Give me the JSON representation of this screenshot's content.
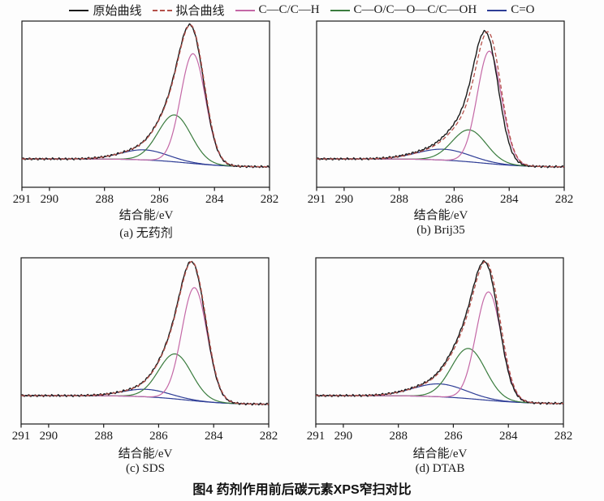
{
  "caption": "图4 药剂作用前后碳元素XPS窄扫对比",
  "colors": {
    "frame": "#1a1a1a",
    "raw": "#1a1a1a",
    "fit": "#b5504a",
    "cc": "#c468a6",
    "co": "#3a7c3e",
    "cO": "#2e3d96",
    "bg_line": "#2e3d96"
  },
  "legend": {
    "items": [
      {
        "key": "raw",
        "label": "原始曲线",
        "color": "#1a1a1a",
        "dash": false
      },
      {
        "key": "fit",
        "label": "拟合曲线",
        "color": "#b5504a",
        "dash": true
      },
      {
        "key": "cc",
        "label": "C—C/C—H",
        "color": "#c468a6",
        "dash": false
      },
      {
        "key": "co",
        "label": "C—O/C—O—C/C—OH",
        "color": "#3a7c3e",
        "dash": false
      },
      {
        "key": "cO",
        "label": "C=O",
        "color": "#2e3d96",
        "dash": false
      }
    ]
  },
  "axis": {
    "xlabel": "结合能/eV",
    "x_range": [
      291,
      282
    ],
    "x_ticks": [
      291,
      290,
      288,
      286,
      284,
      282
    ]
  },
  "chart_data": [
    {
      "id": "a",
      "type": "line",
      "label": "(a) 无药剂",
      "xlabel": "结合能/eV",
      "x_range": [
        291,
        282
      ],
      "x_ticks": [
        291,
        290,
        288,
        286,
        284,
        282
      ],
      "apex": 0.99,
      "raw_shift": 0.02,
      "background": {
        "step": 0.06,
        "center": 285.0,
        "width": 0.8
      },
      "peaks": [
        {
          "name": "C—C/C—H",
          "color_key": "cc",
          "center": 284.78,
          "amp": 0.82,
          "sigma": 0.45
        },
        {
          "name": "C—O/C—O—C/C—OH",
          "color_key": "co",
          "center": 285.45,
          "amp": 0.35,
          "sigma": 0.6
        },
        {
          "name": "C=O",
          "color_key": "cO",
          "center": 286.55,
          "amp": 0.075,
          "sigma": 0.85
        }
      ]
    },
    {
      "id": "b",
      "type": "line",
      "label": "(b) Brij35",
      "xlabel": "结合能/eV",
      "x_range": [
        291,
        282
      ],
      "x_ticks": [
        291,
        290,
        288,
        286,
        284,
        282
      ],
      "apex": 0.94,
      "raw_shift": 0.1,
      "background": {
        "step": 0.06,
        "center": 285.0,
        "width": 0.8
      },
      "peaks": [
        {
          "name": "C—C/C—H",
          "color_key": "cc",
          "center": 284.72,
          "amp": 0.88,
          "sigma": 0.44
        },
        {
          "name": "C—O/C—O—C/C—OH",
          "color_key": "co",
          "center": 285.45,
          "amp": 0.25,
          "sigma": 0.62
        },
        {
          "name": "C=O",
          "color_key": "cO",
          "center": 286.38,
          "amp": 0.085,
          "sigma": 0.95
        }
      ]
    },
    {
      "id": "c",
      "type": "line",
      "label": "(c) SDS",
      "xlabel": "结合能/eV",
      "x_range": [
        291,
        282
      ],
      "x_ticks": [
        291,
        290,
        288,
        286,
        284,
        282
      ],
      "apex": 0.99,
      "raw_shift": 0.02,
      "background": {
        "step": 0.065,
        "center": 285.0,
        "width": 0.8
      },
      "peaks": [
        {
          "name": "C—C/C—H",
          "color_key": "cc",
          "center": 284.7,
          "amp": 0.83,
          "sigma": 0.46
        },
        {
          "name": "C—O/C—O—C/C—OH",
          "color_key": "co",
          "center": 285.4,
          "amp": 0.33,
          "sigma": 0.6
        },
        {
          "name": "C=O",
          "color_key": "cO",
          "center": 286.45,
          "amp": 0.055,
          "sigma": 0.85
        }
      ]
    },
    {
      "id": "d",
      "type": "line",
      "label": "(d) DTAB",
      "xlabel": "结合能/eV",
      "x_range": [
        291,
        282
      ],
      "x_ticks": [
        291,
        290,
        288,
        286,
        284,
        282
      ],
      "apex": 0.99,
      "raw_shift": 0.05,
      "background": {
        "step": 0.06,
        "center": 285.0,
        "width": 0.85
      },
      "peaks": [
        {
          "name": "C—C/C—H",
          "color_key": "cc",
          "center": 284.72,
          "amp": 0.8,
          "sigma": 0.46
        },
        {
          "name": "C—O/C—O—C/C—OH",
          "color_key": "co",
          "center": 285.45,
          "amp": 0.37,
          "sigma": 0.62
        },
        {
          "name": "C=O",
          "color_key": "cO",
          "center": 286.5,
          "amp": 0.095,
          "sigma": 0.95
        }
      ]
    }
  ]
}
